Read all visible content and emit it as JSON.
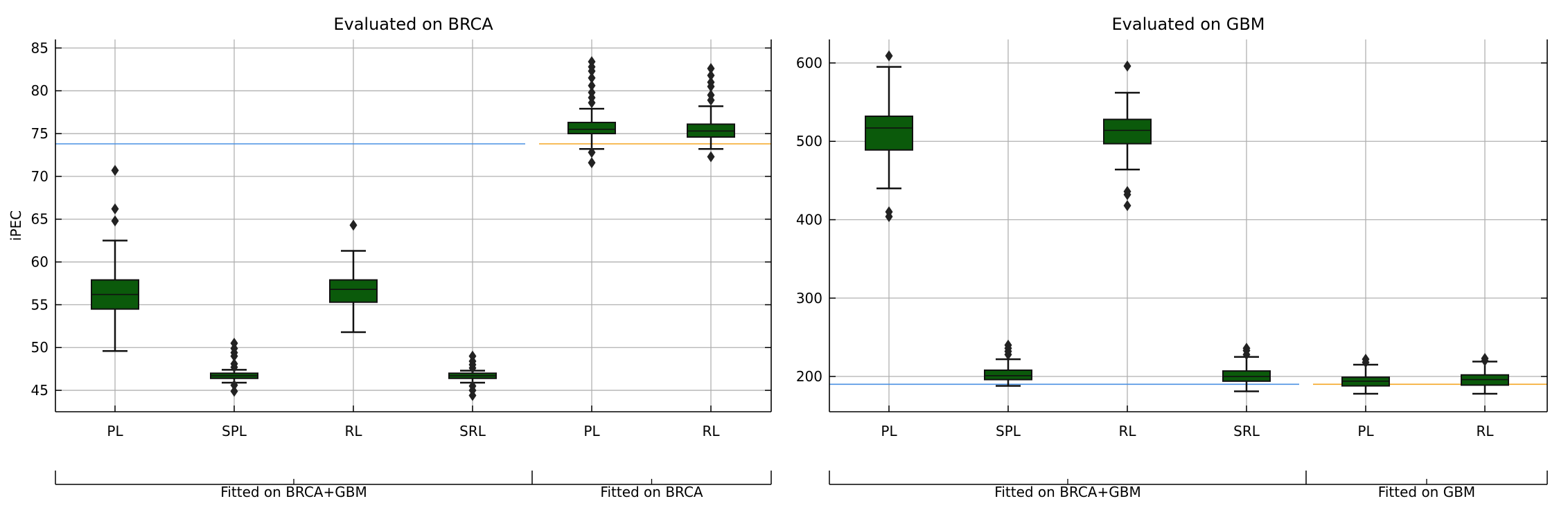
{
  "chart_data": [
    {
      "type": "box",
      "title": "Evaluated on BRCA",
      "xlabel": "",
      "ylabel": "iPEC",
      "ylim": [
        42.5,
        86
      ],
      "yticks": [
        45,
        50,
        55,
        60,
        65,
        70,
        75,
        80,
        85
      ],
      "grid": true,
      "categories": [
        "PL",
        "SPL",
        "RL",
        "SRL",
        "PL",
        "RL"
      ],
      "groups": [
        {
          "label": "Fitted on BRCA+GBM",
          "start": 0,
          "end": 3
        },
        {
          "label": "Fitted on BRCA",
          "start": 4,
          "end": 5
        }
      ],
      "reference_lines": [
        {
          "value": 73.8,
          "from": 0,
          "to": 3,
          "color": "#4a90e2"
        },
        {
          "value": 73.8,
          "from": 4,
          "to": 5,
          "color": "#f5a623"
        }
      ],
      "boxes": [
        {
          "whisker_low": 49.6,
          "q1": 54.5,
          "median": 56.2,
          "q3": 57.9,
          "whisker_high": 62.5,
          "outliers": [
            64.8,
            66.2,
            70.7
          ]
        },
        {
          "whisker_low": 45.9,
          "q1": 46.4,
          "median": 46.7,
          "q3": 47.0,
          "whisker_high": 47.4,
          "outliers": [
            44.9,
            45.6,
            47.7,
            48.1,
            49.0,
            49.4,
            49.9,
            50.5
          ]
        },
        {
          "whisker_low": 51.8,
          "q1": 55.3,
          "median": 56.8,
          "q3": 57.9,
          "whisker_high": 61.3,
          "outliers": [
            64.3
          ]
        },
        {
          "whisker_low": 45.9,
          "q1": 46.4,
          "median": 46.7,
          "q3": 47.0,
          "whisker_high": 47.3,
          "outliers": [
            44.4,
            45.0,
            45.5,
            47.6,
            48.0,
            48.4,
            49.0
          ]
        },
        {
          "whisker_low": 73.2,
          "q1": 75.0,
          "median": 75.5,
          "q3": 76.3,
          "whisker_high": 77.9,
          "outliers": [
            71.6,
            72.8,
            78.6,
            79.2,
            79.8,
            80.6,
            81.5,
            82.3,
            82.8,
            83.4
          ]
        },
        {
          "whisker_low": 73.2,
          "q1": 74.6,
          "median": 75.3,
          "q3": 76.1,
          "whisker_high": 78.2,
          "outliers": [
            72.3,
            78.9,
            79.5,
            80.5,
            81.0,
            81.8,
            82.6
          ]
        }
      ],
      "box_color": "#0b5a0b"
    },
    {
      "type": "box",
      "title": "Evaluated on GBM",
      "xlabel": "",
      "ylabel": "",
      "ylim": [
        155,
        630
      ],
      "yticks": [
        200,
        300,
        400,
        500,
        600
      ],
      "grid": true,
      "categories": [
        "PL",
        "SPL",
        "RL",
        "SRL",
        "PL",
        "RL"
      ],
      "groups": [
        {
          "label": "Fitted on BRCA+GBM",
          "start": 0,
          "end": 3
        },
        {
          "label": "Fitted on GBM",
          "start": 4,
          "end": 5
        }
      ],
      "reference_lines": [
        {
          "value": 190,
          "from": 0,
          "to": 3,
          "color": "#4a90e2"
        },
        {
          "value": 190,
          "from": 4,
          "to": 5,
          "color": "#f5a623"
        }
      ],
      "boxes": [
        {
          "whisker_low": 440,
          "q1": 489,
          "median": 517,
          "q3": 532,
          "whisker_high": 595,
          "outliers": [
            404,
            410,
            609
          ]
        },
        {
          "whisker_low": 188,
          "q1": 196,
          "median": 201,
          "q3": 208,
          "whisker_high": 222,
          "outliers": [
            228,
            232,
            236,
            240
          ]
        },
        {
          "whisker_low": 464,
          "q1": 497,
          "median": 514,
          "q3": 528,
          "whisker_high": 562,
          "outliers": [
            418,
            432,
            436,
            596
          ]
        },
        {
          "whisker_low": 181,
          "q1": 194,
          "median": 200,
          "q3": 207,
          "whisker_high": 225,
          "outliers": [
            228,
            233,
            236
          ]
        },
        {
          "whisker_low": 178,
          "q1": 188,
          "median": 194,
          "q3": 199,
          "whisker_high": 215,
          "outliers": [
            218,
            222
          ]
        },
        {
          "whisker_low": 178,
          "q1": 189,
          "median": 196,
          "q3": 202,
          "whisker_high": 219,
          "outliers": [
            220,
            223
          ]
        }
      ],
      "box_color": "#0b5a0b"
    }
  ]
}
